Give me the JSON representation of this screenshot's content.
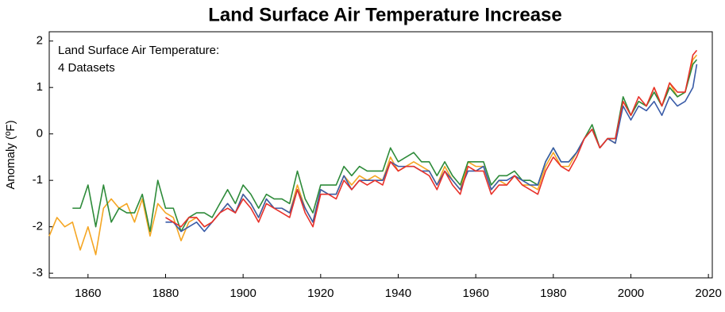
{
  "chart_data": {
    "type": "line",
    "title": "Land Surface Air Temperature Increase",
    "annotation": [
      "Land Surface Air Temperature:",
      "4 Datasets"
    ],
    "y_label": "Anomaly (ºF)",
    "x": [
      1850,
      1852,
      1854,
      1856,
      1858,
      1860,
      1862,
      1864,
      1866,
      1868,
      1870,
      1872,
      1874,
      1876,
      1878,
      1880,
      1882,
      1884,
      1886,
      1888,
      1890,
      1892,
      1894,
      1896,
      1898,
      1900,
      1902,
      1904,
      1906,
      1908,
      1910,
      1912,
      1914,
      1916,
      1918,
      1920,
      1922,
      1924,
      1926,
      1928,
      1930,
      1932,
      1934,
      1936,
      1938,
      1940,
      1942,
      1944,
      1946,
      1948,
      1950,
      1952,
      1954,
      1956,
      1958,
      1960,
      1962,
      1964,
      1966,
      1968,
      1970,
      1972,
      1974,
      1976,
      1978,
      1980,
      1982,
      1984,
      1986,
      1988,
      1990,
      1992,
      1994,
      1996,
      1998,
      2000,
      2002,
      2004,
      2006,
      2008,
      2010,
      2012,
      2014,
      2016,
      2017
    ],
    "series": [
      {
        "color": "#f5a623",
        "values": [
          -2.2,
          -1.8,
          -2.0,
          -1.9,
          -2.5,
          -2.0,
          -2.6,
          -1.6,
          -1.4,
          -1.6,
          -1.5,
          -1.9,
          -1.4,
          -2.2,
          -1.5,
          -1.7,
          -1.8,
          -2.3,
          -1.9,
          -1.8,
          -2.0,
          -1.9,
          -1.7,
          -1.5,
          -1.7,
          -1.3,
          -1.5,
          -1.8,
          -1.4,
          -1.6,
          -1.6,
          -1.7,
          -1.1,
          -1.6,
          -1.9,
          -1.2,
          -1.3,
          -1.3,
          -0.9,
          -1.1,
          -0.9,
          -1.0,
          -0.9,
          -1.0,
          -0.5,
          -0.8,
          -0.7,
          -0.6,
          -0.7,
          -0.8,
          -1.1,
          -0.7,
          -1.0,
          -1.2,
          -0.6,
          -0.7,
          -0.7,
          -1.2,
          -1.0,
          -1.1,
          -0.9,
          -1.1,
          -1.1,
          -1.2,
          -0.7,
          -0.4,
          -0.7,
          -0.7,
          -0.4,
          -0.1,
          0.1,
          -0.3,
          -0.1,
          -0.2,
          0.7,
          0.4,
          0.7,
          0.6,
          1.0,
          0.6,
          1.1,
          0.8,
          0.9,
          1.6,
          1.7
        ]
      },
      {
        "color": "#2e8b3a",
        "values": [
          null,
          null,
          null,
          -1.6,
          -1.6,
          -1.1,
          -2.0,
          -1.1,
          -1.9,
          -1.6,
          -1.7,
          -1.7,
          -1.3,
          -2.1,
          -1.0,
          -1.6,
          -1.6,
          -2.1,
          -1.8,
          -1.7,
          -1.7,
          -1.8,
          -1.5,
          -1.2,
          -1.5,
          -1.1,
          -1.3,
          -1.6,
          -1.3,
          -1.4,
          -1.4,
          -1.5,
          -0.8,
          -1.4,
          -1.7,
          -1.1,
          -1.1,
          -1.1,
          -0.7,
          -0.9,
          -0.7,
          -0.8,
          -0.8,
          -0.8,
          -0.3,
          -0.6,
          -0.5,
          -0.4,
          -0.6,
          -0.6,
          -0.9,
          -0.6,
          -0.9,
          -1.1,
          -0.6,
          -0.6,
          -0.6,
          -1.1,
          -0.9,
          -0.9,
          -0.8,
          -1.0,
          -1.0,
          -1.1,
          -0.6,
          -0.3,
          -0.6,
          -0.6,
          -0.4,
          -0.1,
          0.2,
          -0.3,
          -0.1,
          -0.1,
          0.8,
          0.4,
          0.7,
          0.6,
          0.9,
          0.6,
          1.0,
          0.8,
          0.9,
          1.5,
          1.6
        ]
      },
      {
        "color": "#3a5ca8",
        "values": [
          null,
          null,
          null,
          null,
          null,
          null,
          null,
          null,
          null,
          null,
          null,
          null,
          null,
          null,
          null,
          -1.9,
          -1.9,
          -2.1,
          -2.0,
          -1.9,
          -2.1,
          -1.9,
          -1.7,
          -1.5,
          -1.7,
          -1.3,
          -1.5,
          -1.8,
          -1.4,
          -1.6,
          -1.6,
          -1.7,
          -1.2,
          -1.6,
          -1.9,
          -1.2,
          -1.3,
          -1.3,
          -0.9,
          -1.2,
          -1.0,
          -1.0,
          -1.0,
          -1.0,
          -0.6,
          -0.7,
          -0.7,
          -0.7,
          -0.8,
          -0.8,
          -1.1,
          -0.8,
          -1.0,
          -1.2,
          -0.8,
          -0.8,
          -0.7,
          -1.2,
          -1.0,
          -1.0,
          -0.9,
          -1.0,
          -1.1,
          -1.1,
          -0.6,
          -0.3,
          -0.6,
          -0.6,
          -0.4,
          -0.1,
          0.1,
          -0.3,
          -0.1,
          -0.2,
          0.6,
          0.3,
          0.6,
          0.5,
          0.7,
          0.4,
          0.8,
          0.6,
          0.7,
          1.0,
          1.5
        ]
      },
      {
        "color": "#e8312a",
        "values": [
          null,
          null,
          null,
          null,
          null,
          null,
          null,
          null,
          null,
          null,
          null,
          null,
          null,
          null,
          null,
          -1.8,
          -1.9,
          -2.0,
          -1.8,
          -1.8,
          -2.0,
          -1.9,
          -1.7,
          -1.6,
          -1.7,
          -1.4,
          -1.6,
          -1.9,
          -1.5,
          -1.6,
          -1.7,
          -1.8,
          -1.2,
          -1.7,
          -2.0,
          -1.3,
          -1.3,
          -1.4,
          -1.0,
          -1.2,
          -1.0,
          -1.1,
          -1.0,
          -1.1,
          -0.6,
          -0.8,
          -0.7,
          -0.7,
          -0.8,
          -0.9,
          -1.2,
          -0.8,
          -1.1,
          -1.3,
          -0.7,
          -0.8,
          -0.8,
          -1.3,
          -1.1,
          -1.1,
          -0.9,
          -1.1,
          -1.2,
          -1.3,
          -0.8,
          -0.5,
          -0.7,
          -0.8,
          -0.5,
          -0.1,
          0.1,
          -0.3,
          -0.1,
          -0.1,
          0.7,
          0.4,
          0.8,
          0.6,
          1.0,
          0.6,
          1.1,
          0.9,
          0.9,
          1.7,
          1.8
        ]
      }
    ],
    "xlim": [
      1850,
      2021
    ],
    "xticks": [
      1860,
      1880,
      1900,
      1920,
      1940,
      1960,
      1980,
      2000,
      2020
    ],
    "ylim": [
      -3.1,
      2.2
    ],
    "yticks": [
      -3,
      -2,
      -1,
      0,
      1,
      2
    ],
    "grid": false
  }
}
